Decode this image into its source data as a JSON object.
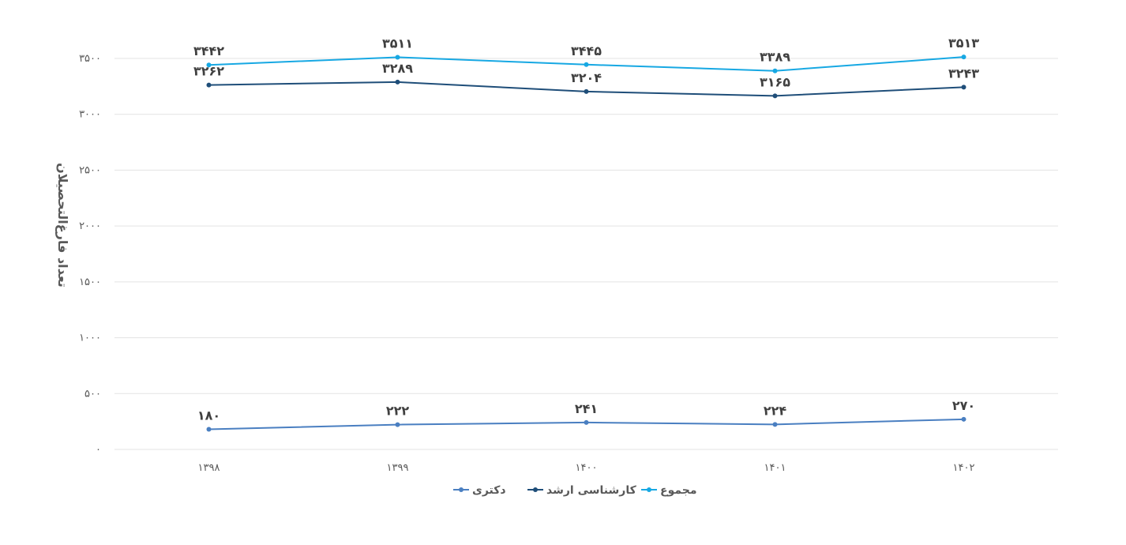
{
  "chart_data": {
    "type": "line",
    "categories": [
      "۱۳۹۸",
      "۱۳۹۹",
      "۱۴۰۰",
      "۱۴۰۱",
      "۱۴۰۲"
    ],
    "ylabel": "تعداد فارغ‌التحصیلان",
    "xlabel": "",
    "ylim": [
      0,
      3500
    ],
    "yticks": [
      0,
      500,
      1000,
      1500,
      2000,
      2500,
      3000,
      3500
    ],
    "ytick_labels": [
      "۰",
      "۵۰۰",
      "۱۰۰۰",
      "۱۵۰۰",
      "۲۰۰۰",
      "۲۵۰۰",
      "۳۰۰۰",
      "۳۵۰۰"
    ],
    "grid": true,
    "legend_position": "bottom",
    "series": [
      {
        "name": "مجموع",
        "color": "#17a8e3",
        "values": [
          3442,
          3511,
          3445,
          3389,
          3513
        ],
        "labels": [
          "۳۴۴۲",
          "۳۵۱۱",
          "۳۴۴۵",
          "۳۳۸۹",
          "۳۵۱۳"
        ],
        "label_position": "above"
      },
      {
        "name": "کارشناسی ارشد",
        "color": "#1f4e79",
        "values": [
          3262,
          3289,
          3204,
          3165,
          3243
        ],
        "labels": [
          "۳۲۶۲",
          "۳۲۸۹",
          "۳۲۰۴",
          "۳۱۶۵",
          "۳۲۴۳"
        ],
        "label_position": "above"
      },
      {
        "name": "دکتری",
        "color": "#4a7fc1",
        "values": [
          180,
          222,
          241,
          224,
          270
        ],
        "labels": [
          "۱۸۰",
          "۲۲۲",
          "۲۴۱",
          "۲۲۴",
          "۲۷۰"
        ],
        "label_position": "above"
      }
    ],
    "legend_order": [
      "دکتری",
      "کارشناسی ارشد",
      "مجموع"
    ]
  }
}
